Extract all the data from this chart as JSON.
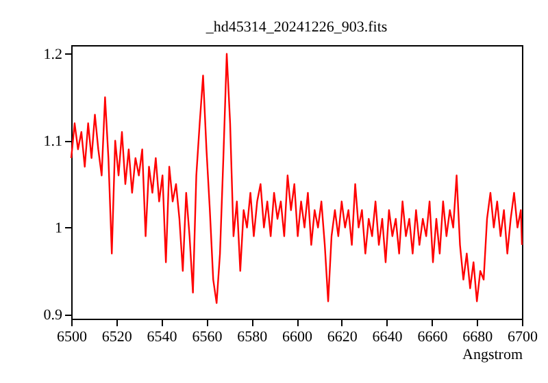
{
  "chart_data": {
    "type": "line",
    "title": "_hd45314_20241226_903.fits",
    "xlabel": "Angstrom",
    "xlim": [
      6500,
      6700
    ],
    "ylim": [
      0.895,
      1.21
    ],
    "xticks": [
      6500,
      6520,
      6540,
      6560,
      6580,
      6600,
      6620,
      6640,
      6660,
      6680,
      6700
    ],
    "yticks": [
      0.9,
      1,
      1.1,
      1.2
    ],
    "grid": false,
    "legend": false,
    "marker": "none",
    "line_style": "solid",
    "series": [
      {
        "color": "#ff0000",
        "x": [
          6500.0,
          6501.5,
          6503.0,
          6504.5,
          6506.0,
          6507.5,
          6509.0,
          6510.5,
          6512.0,
          6513.5,
          6515.0,
          6516.5,
          6518.0,
          6519.5,
          6521.0,
          6522.5,
          6524.0,
          6525.5,
          6527.0,
          6528.5,
          6530.0,
          6531.5,
          6533.0,
          6534.5,
          6536.0,
          6537.5,
          6539.0,
          6540.5,
          6542.0,
          6543.5,
          6545.0,
          6546.5,
          6548.0,
          6549.5,
          6551.0,
          6552.5,
          6554.0,
          6555.5,
          6557.0,
          6558.5,
          6560.0,
          6561.5,
          6563.0,
          6564.5,
          6566.0,
          6567.5,
          6569.0,
          6570.5,
          6572.0,
          6573.5,
          6575.0,
          6576.5,
          6578.0,
          6579.5,
          6581.0,
          6582.5,
          6584.0,
          6585.5,
          6587.0,
          6588.5,
          6590.0,
          6591.5,
          6593.0,
          6594.5,
          6596.0,
          6597.5,
          6599.0,
          6600.5,
          6602.0,
          6603.5,
          6605.0,
          6606.5,
          6608.0,
          6609.5,
          6611.0,
          6612.5,
          6614.0,
          6615.5,
          6617.0,
          6618.5,
          6620.0,
          6621.5,
          6623.0,
          6624.5,
          6626.0,
          6627.5,
          6629.0,
          6630.5,
          6632.0,
          6633.5,
          6635.0,
          6636.5,
          6638.0,
          6639.5,
          6641.0,
          6642.5,
          6644.0,
          6645.5,
          6647.0,
          6648.5,
          6650.0,
          6651.5,
          6653.0,
          6654.5,
          6656.0,
          6657.5,
          6659.0,
          6660.5,
          6662.0,
          6663.5,
          6665.0,
          6666.5,
          6668.0,
          6669.5,
          6671.0,
          6672.5,
          6674.0,
          6675.5,
          6677.0,
          6678.5,
          6680.0,
          6681.5,
          6683.0,
          6684.5,
          6686.0,
          6687.5,
          6689.0,
          6690.5,
          6692.0,
          6693.5,
          6695.0,
          6696.5,
          6698.0,
          6699.5,
          6700.0
        ],
        "values": [
          1.08,
          1.12,
          1.09,
          1.11,
          1.07,
          1.12,
          1.08,
          1.13,
          1.09,
          1.06,
          1.15,
          1.08,
          0.97,
          1.1,
          1.06,
          1.11,
          1.05,
          1.09,
          1.04,
          1.08,
          1.06,
          1.09,
          0.99,
          1.07,
          1.04,
          1.08,
          1.03,
          1.06,
          0.96,
          1.07,
          1.03,
          1.05,
          1.01,
          0.95,
          1.04,
          0.99,
          0.925,
          1.06,
          1.12,
          1.175,
          1.09,
          1.02,
          0.94,
          0.913,
          0.97,
          1.08,
          1.2,
          1.12,
          0.99,
          1.03,
          0.95,
          1.02,
          1.0,
          1.04,
          0.99,
          1.03,
          1.05,
          1.0,
          1.03,
          0.99,
          1.04,
          1.01,
          1.03,
          0.99,
          1.06,
          1.02,
          1.05,
          0.99,
          1.03,
          1.0,
          1.04,
          0.98,
          1.02,
          1.0,
          1.03,
          0.98,
          0.915,
          0.99,
          1.02,
          0.99,
          1.03,
          1.0,
          1.02,
          0.98,
          1.05,
          1.0,
          1.02,
          0.97,
          1.01,
          0.99,
          1.03,
          0.98,
          1.01,
          0.96,
          1.02,
          0.99,
          1.01,
          0.97,
          1.03,
          0.99,
          1.01,
          0.97,
          1.02,
          0.98,
          1.01,
          0.99,
          1.03,
          0.96,
          1.01,
          0.97,
          1.03,
          0.99,
          1.02,
          1.0,
          1.06,
          0.98,
          0.94,
          0.97,
          0.93,
          0.96,
          0.915,
          0.95,
          0.94,
          1.01,
          1.04,
          1.0,
          1.03,
          0.99,
          1.02,
          0.97,
          1.01,
          1.04,
          1.0,
          1.02,
          0.98
        ]
      }
    ]
  }
}
